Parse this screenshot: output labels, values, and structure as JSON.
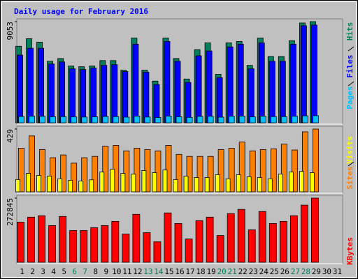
{
  "chart_data": [
    {
      "type": "bar",
      "title": "Daily usage for February 2016",
      "ylim": [
        0,
        9053
      ],
      "yticks": [
        9053
      ],
      "series": [
        {
          "name": "Hits",
          "color": "#00805c",
          "values": [
            6851,
            7524,
            7218,
            5505,
            5750,
            5077,
            5016,
            5077,
            5566,
            5566,
            4710,
            7585,
            4710,
            3731,
            7585,
            5750,
            3915,
            6545,
            7157,
            4343,
            7157,
            7279,
            5138,
            7585,
            5933,
            5933,
            7340,
            8931,
            9053,
            null,
            null
          ]
        },
        {
          "name": "Files",
          "color": "#0000ff",
          "values": [
            6056,
            6668,
            6668,
            5261,
            5444,
            4832,
            4771,
            4894,
            5138,
            5199,
            4588,
            7035,
            4527,
            3426,
            7279,
            5505,
            3609,
            5995,
            6423,
            4037,
            6790,
            7035,
            4832,
            7157,
            5505,
            5505,
            7035,
            8686,
            8747,
            null,
            null
          ]
        },
        {
          "name": "Pages",
          "color": "#00c0ff",
          "values": [
            560,
            590,
            580,
            540,
            550,
            520,
            510,
            530,
            560,
            550,
            500,
            600,
            510,
            470,
            600,
            540,
            480,
            570,
            580,
            500,
            590,
            600,
            530,
            590,
            550,
            550,
            590,
            620,
            630,
            null,
            null
          ]
        }
      ]
    },
    {
      "type": "bar",
      "ylim": [
        0,
        429
      ],
      "yticks": [
        429
      ],
      "series": [
        {
          "name": "Sites",
          "color": "#ff8000",
          "values": [
            298,
            382,
            289,
            233,
            252,
            196,
            233,
            242,
            312,
            317,
            280,
            298,
            289,
            280,
            317,
            256,
            242,
            242,
            242,
            289,
            298,
            340,
            280,
            289,
            294,
            326,
            286,
            410,
            429,
            null,
            null
          ]
        },
        {
          "name": "Visits",
          "color": "#ffff00",
          "values": [
            84,
            126,
            112,
            107,
            89,
            78,
            74,
            82,
            135,
            154,
            126,
            121,
            145,
            131,
            149,
            84,
            107,
            98,
            98,
            117,
            89,
            117,
            103,
            98,
            89,
            121,
            135,
            140,
            131,
            null,
            null
          ]
        }
      ]
    },
    {
      "type": "bar",
      "ylim": [
        0,
        272845
      ],
      "yticks": [
        272845
      ],
      "categories": [
        "1",
        "2",
        "3",
        "4",
        "5",
        "6",
        "7",
        "8",
        "9",
        "10",
        "11",
        "12",
        "13",
        "14",
        "15",
        "16",
        "17",
        "18",
        "19",
        "20",
        "21",
        "22",
        "23",
        "24",
        "25",
        "26",
        "27",
        "28",
        "29",
        "30",
        "31"
      ],
      "category_colors": [
        "#000000",
        "#000000",
        "#000000",
        "#000000",
        "#000000",
        "#00805c",
        "#00805c",
        "#000000",
        "#000000",
        "#000000",
        "#000000",
        "#000000",
        "#00805c",
        "#00805c",
        "#000000",
        "#000000",
        "#000000",
        "#000000",
        "#000000",
        "#00805c",
        "#00805c",
        "#000000",
        "#000000",
        "#000000",
        "#000000",
        "#000000",
        "#00805c",
        "#00805c",
        "#000000",
        "#000000",
        "#000000"
      ],
      "series": [
        {
          "name": "KBytes",
          "color": "#ff0000",
          "values": [
            170900,
            191889,
            197885,
            155910,
            194887,
            134921,
            134921,
            146915,
            155910,
            173900,
            119932,
            203882,
            125928,
            86950,
            209880,
            164905,
            98942,
            176898,
            191889,
            113935,
            206883,
            224872,
            137920,
            215877,
            164905,
            173900,
            197885,
            242860,
            272845,
            null,
            null
          ]
        }
      ]
    }
  ]
}
